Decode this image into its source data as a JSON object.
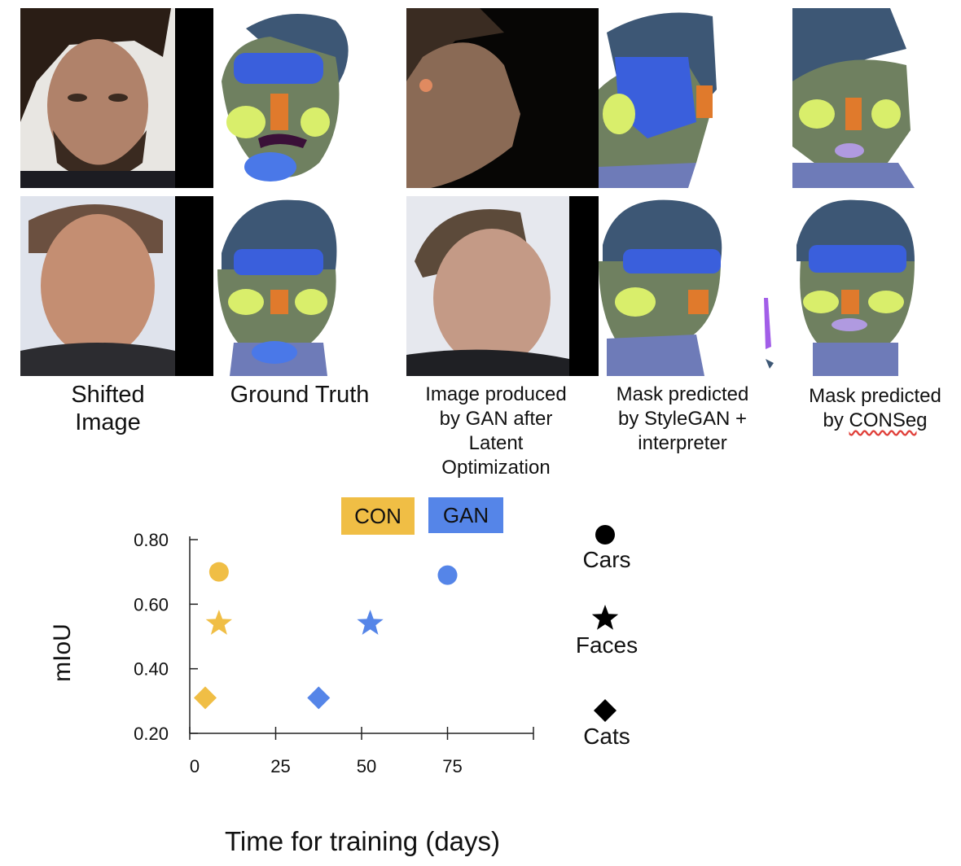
{
  "captions": {
    "shifted_line1": "Shifted",
    "shifted_line2": "Image",
    "ground_truth": "Ground Truth",
    "gan_line1": "Image produced",
    "gan_line2": "by GAN after",
    "gan_line3": "Latent",
    "gan_line4": "Optimization",
    "stylegan_line1": "Mask predicted",
    "stylegan_line2": "by StyleGAN +",
    "stylegan_line3": "interpreter",
    "conseg_line1": "Mask predicted",
    "conseg_line2_prefix": "by ",
    "conseg_line2_word": "CONSeg"
  },
  "legend": {
    "con": "CON",
    "gan": "GAN",
    "cars": "Cars",
    "faces": "Faces",
    "cats": "Cats"
  },
  "colors": {
    "con": "#f0be45",
    "gan": "#5585e8",
    "hair": "#3d5775",
    "skin": "#6f8060",
    "forehead": "#3a5fdc",
    "neck": "#6e7bb8"
  },
  "chart_data": {
    "type": "scatter",
    "xlabel": "Time for training (days)",
    "ylabel": "mIoU",
    "xlim": [
      0,
      100
    ],
    "ylim": [
      0.2,
      0.8
    ],
    "x_ticks": [
      0,
      25,
      50,
      75
    ],
    "y_ticks": [
      "0.20",
      "0.40",
      "0.60",
      "0.80"
    ],
    "series": [
      {
        "name": "CON",
        "color": "#f0be45",
        "points": [
          {
            "x": 8.5,
            "y": 0.7,
            "dataset": "Cars"
          },
          {
            "x": 8.5,
            "y": 0.54,
            "dataset": "Faces"
          },
          {
            "x": 4.5,
            "y": 0.31,
            "dataset": "Cats"
          }
        ]
      },
      {
        "name": "GAN",
        "color": "#5585e8",
        "points": [
          {
            "x": 75,
            "y": 0.69,
            "dataset": "Cars"
          },
          {
            "x": 52.5,
            "y": 0.54,
            "dataset": "Faces"
          },
          {
            "x": 37.5,
            "y": 0.31,
            "dataset": "Cats"
          }
        ]
      }
    ]
  }
}
